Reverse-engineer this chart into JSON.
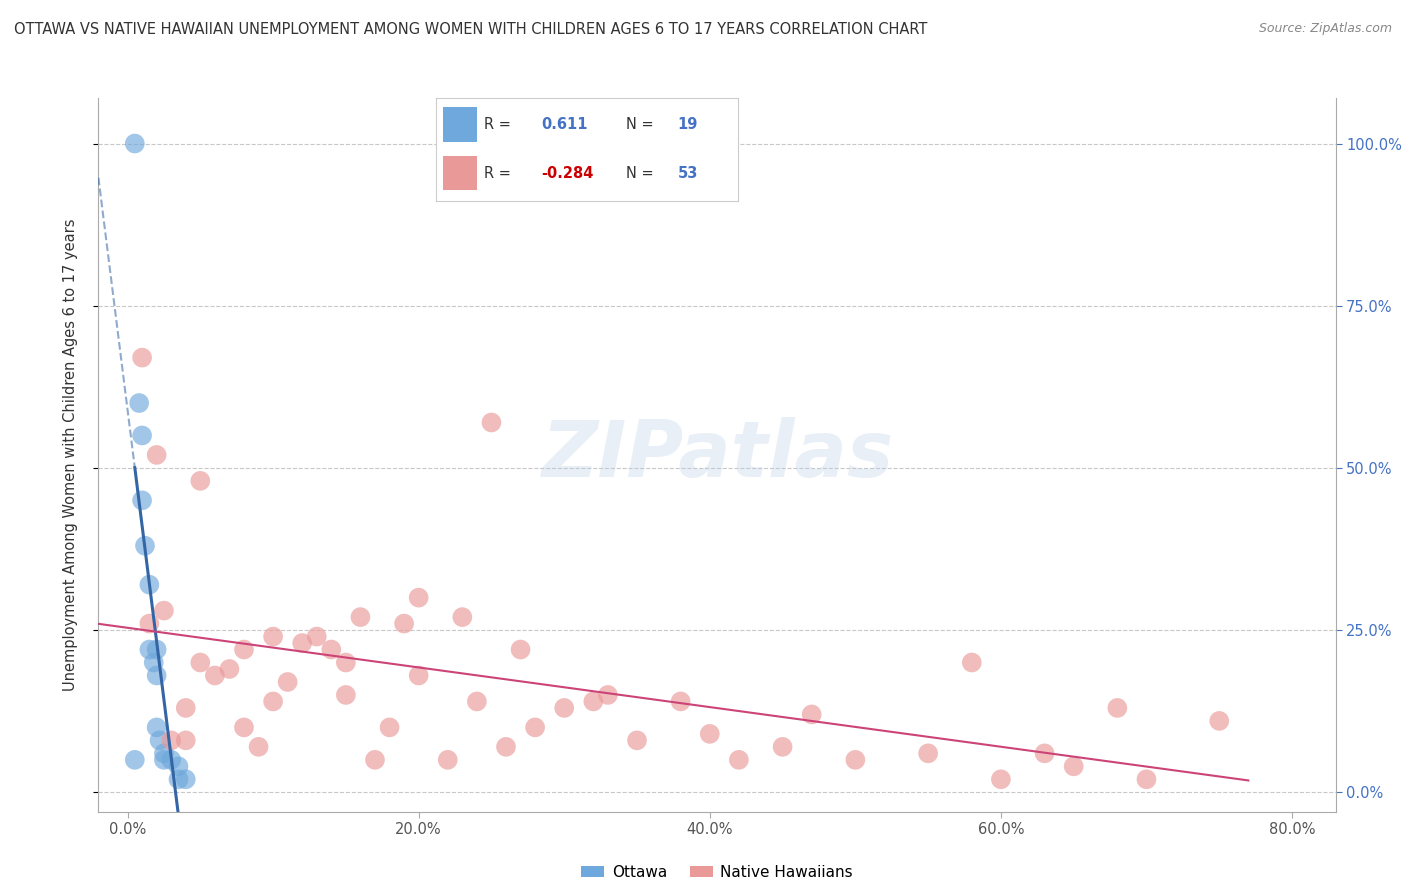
{
  "title": "OTTAWA VS NATIVE HAWAIIAN UNEMPLOYMENT AMONG WOMEN WITH CHILDREN AGES 6 TO 17 YEARS CORRELATION CHART",
  "source": "Source: ZipAtlas.com",
  "ylabel": "Unemployment Among Women with Children Ages 6 to 17 years",
  "xlabel_vals": [
    0.0,
    20.0,
    40.0,
    60.0,
    80.0
  ],
  "ylabel_right_vals": [
    0.0,
    25.0,
    50.0,
    75.0,
    100.0
  ],
  "xlim": [
    -2.0,
    83
  ],
  "ylim": [
    -3.0,
    107
  ],
  "ottawa_R": 0.611,
  "ottawa_N": 19,
  "nh_R": -0.284,
  "nh_N": 53,
  "ottawa_color": "#6fa8dc",
  "nh_color": "#ea9999",
  "trend_blue": "#3465a4",
  "trend_pink": "#cc4477",
  "background_color": "#ffffff",
  "grid_color": "#c8c8c8",
  "watermark": "ZIPatlas",
  "ottawa_x": [
    0.5,
    0.5,
    0.8,
    1.0,
    1.0,
    1.2,
    1.5,
    1.5,
    1.8,
    2.0,
    2.0,
    2.0,
    2.2,
    2.5,
    2.5,
    3.0,
    3.5,
    3.5,
    4.0
  ],
  "ottawa_y": [
    100.0,
    5.0,
    60.0,
    55.0,
    45.0,
    38.0,
    32.0,
    22.0,
    20.0,
    22.0,
    18.0,
    10.0,
    8.0,
    6.0,
    5.0,
    5.0,
    4.0,
    2.0,
    2.0
  ],
  "nh_x": [
    1.0,
    1.5,
    2.0,
    2.5,
    3.0,
    4.0,
    4.0,
    5.0,
    5.0,
    6.0,
    7.0,
    8.0,
    8.0,
    9.0,
    10.0,
    10.0,
    11.0,
    12.0,
    13.0,
    14.0,
    15.0,
    15.0,
    16.0,
    17.0,
    18.0,
    19.0,
    20.0,
    20.0,
    22.0,
    23.0,
    24.0,
    25.0,
    26.0,
    27.0,
    28.0,
    30.0,
    32.0,
    33.0,
    35.0,
    38.0,
    40.0,
    42.0,
    45.0,
    47.0,
    50.0,
    55.0,
    58.0,
    60.0,
    63.0,
    65.0,
    68.0,
    70.0,
    75.0
  ],
  "nh_y": [
    67.0,
    26.0,
    52.0,
    28.0,
    8.0,
    13.0,
    8.0,
    48.0,
    20.0,
    18.0,
    19.0,
    22.0,
    10.0,
    7.0,
    24.0,
    14.0,
    17.0,
    23.0,
    24.0,
    22.0,
    20.0,
    15.0,
    27.0,
    5.0,
    10.0,
    26.0,
    30.0,
    18.0,
    5.0,
    27.0,
    14.0,
    57.0,
    7.0,
    22.0,
    10.0,
    13.0,
    14.0,
    15.0,
    8.0,
    14.0,
    9.0,
    5.0,
    7.0,
    12.0,
    5.0,
    6.0,
    20.0,
    2.0,
    6.0,
    4.0,
    13.0,
    2.0,
    11.0
  ]
}
